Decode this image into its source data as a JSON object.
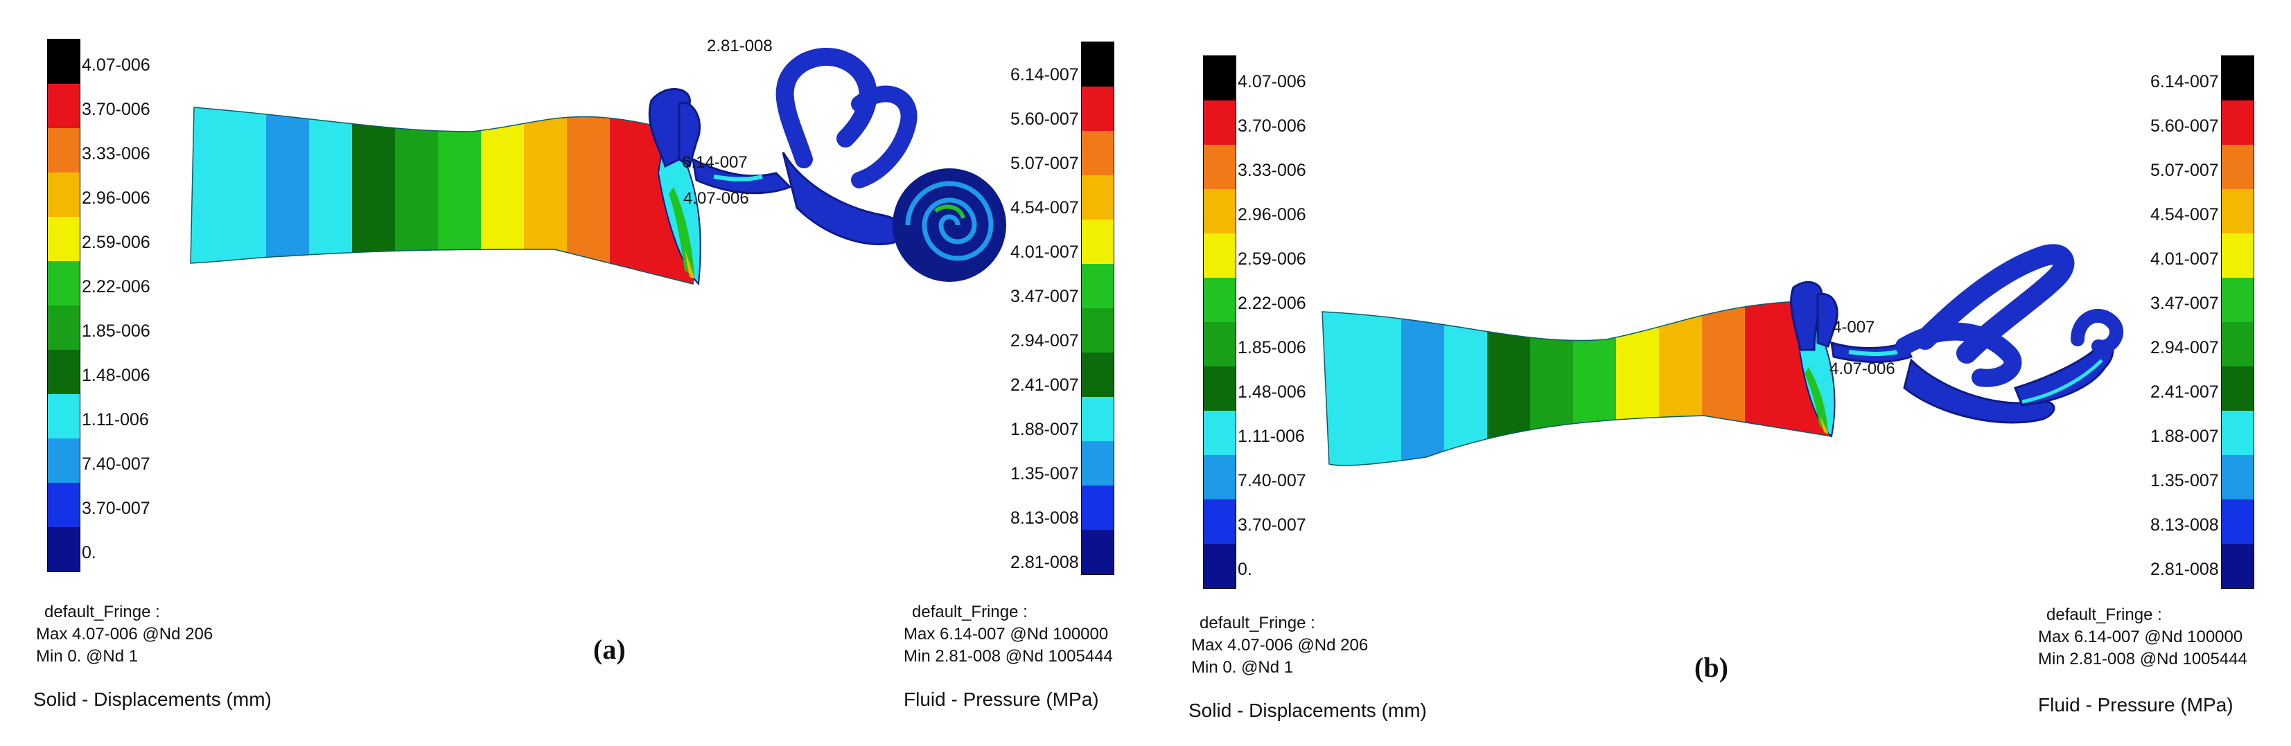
{
  "panels": [
    {
      "letter": "(a)",
      "solid_bar": {
        "labels": [
          "4.07-006",
          "3.70-006",
          "3.33-006",
          "2.96-006",
          "2.59-006",
          "2.22-006",
          "1.85-006",
          "1.48-006",
          "1.11-006",
          "7.40-007",
          "3.70-007",
          "0."
        ],
        "legend": {
          "line1": "default_Fringe :",
          "line2": "Max 4.07-006 @Nd 206",
          "line3": "Min  0. @Nd 1"
        },
        "title": "Solid - Displacements  (mm)"
      },
      "fluid_bar": {
        "labels": [
          "6.14-007",
          "5.60-007",
          "5.07-007",
          "4.54-007",
          "4.01-007",
          "3.47-007",
          "2.94-007",
          "2.41-007",
          "1.88-007",
          "1.35-007",
          "8.13-008",
          "2.81-008"
        ],
        "legend": {
          "line1": "default_Fringe :",
          "line2": "Max 6.14-007 @Nd 100000",
          "line3": "Min 2.81-008 @Nd 1005444"
        },
        "title": "Fluid - Pressure  (MPa)"
      },
      "callouts": [
        "2.81-008",
        "6.14-007",
        "4.07-006"
      ]
    },
    {
      "letter": "(b)",
      "solid_bar": {
        "labels": [
          "4.07-006",
          "3.70-006",
          "3.33-006",
          "2.96-006",
          "2.59-006",
          "2.22-006",
          "1.85-006",
          "1.48-006",
          "1.11-006",
          "7.40-007",
          "3.70-007",
          "0."
        ],
        "legend": {
          "line1": "default_Fringe :",
          "line2": "Max 4.07-006 @Nd 206",
          "line3": "Min  0. @Nd 1"
        },
        "title": "Solid - Displacements  (mm)"
      },
      "fluid_bar": {
        "labels": [
          "6.14-007",
          "5.60-007",
          "5.07-007",
          "4.54-007",
          "4.01-007",
          "3.47-007",
          "2.94-007",
          "2.41-007",
          "1.88-007",
          "1.35-007",
          "8.13-008",
          "2.81-008"
        ],
        "legend": {
          "line1": "default_Fringe :",
          "line2": "Max 6.14-007 @Nd 100000",
          "line3": "Min 2.81-008 @Nd 1005444"
        },
        "title": "Fluid - Pressure  (MPa)"
      },
      "callouts": [
        "4-007",
        "4.07-006"
      ]
    }
  ],
  "fringe_colors": [
    "#000000",
    "#e8141c",
    "#f07a18",
    "#f5b800",
    "#f0f000",
    "#22c222",
    "#18a018",
    "#0c6c0c",
    "#2ce6ee",
    "#1e9ae8",
    "#1432e6",
    "#0a108e"
  ],
  "model_colors": {
    "inner_ear": "#1a2fc8",
    "inner_ear_dark": "#0d1a8a",
    "membrane": "#2ce6ee"
  }
}
